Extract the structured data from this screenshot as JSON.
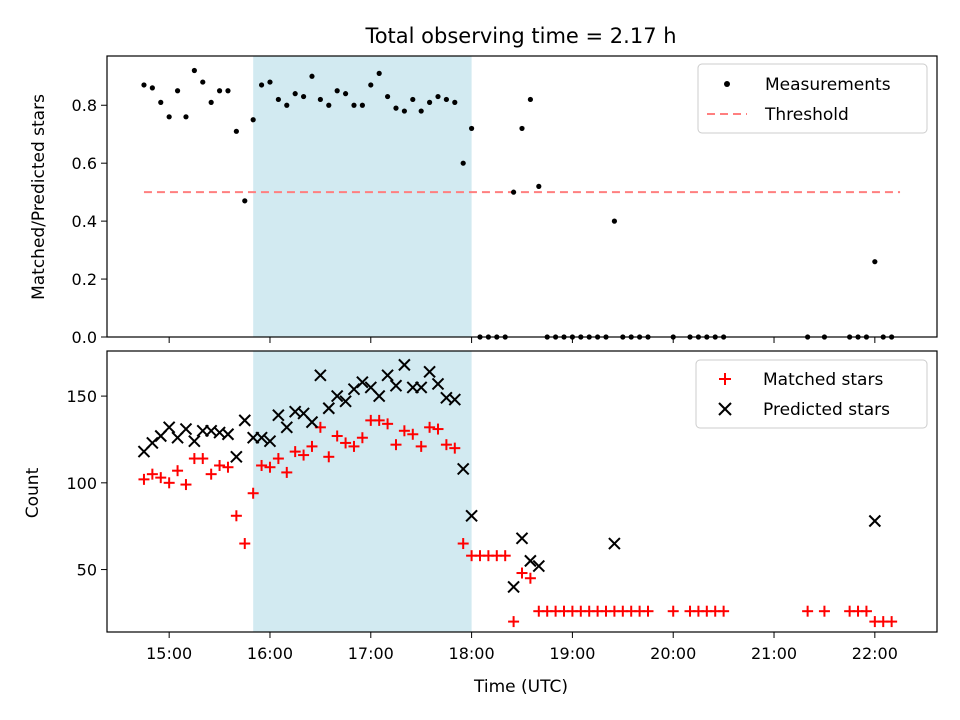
{
  "chart_data": [
    {
      "type": "scatter",
      "title": "Total observing time = 2.17 h",
      "xlabel": "",
      "ylabel": "Matched/Predicted stars",
      "ylim": [
        0,
        0.97
      ],
      "yticks": [
        0.0,
        0.2,
        0.4,
        0.6,
        0.8
      ],
      "ytick_labels": [
        "0.0",
        "0.2",
        "0.4",
        "0.6",
        "0.8"
      ],
      "legend_position": "top-right",
      "shaded_interval": [
        "15:50",
        "18:00"
      ],
      "colors": {
        "measurements": "#000000",
        "threshold": "#ff7f7f",
        "shade": "#add8e6"
      },
      "series": [
        {
          "name": "Measurements",
          "style": "dot",
          "points": [
            [
              "14:45",
              0.87
            ],
            [
              "14:50",
              0.86
            ],
            [
              "14:55",
              0.81
            ],
            [
              "15:00",
              0.76
            ],
            [
              "15:05",
              0.85
            ],
            [
              "15:10",
              0.76
            ],
            [
              "15:15",
              0.92
            ],
            [
              "15:20",
              0.88
            ],
            [
              "15:25",
              0.81
            ],
            [
              "15:30",
              0.85
            ],
            [
              "15:35",
              0.85
            ],
            [
              "15:40",
              0.71
            ],
            [
              "15:45",
              0.47
            ],
            [
              "15:50",
              0.75
            ],
            [
              "15:55",
              0.87
            ],
            [
              "16:00",
              0.88
            ],
            [
              "16:05",
              0.82
            ],
            [
              "16:10",
              0.8
            ],
            [
              "16:15",
              0.84
            ],
            [
              "16:20",
              0.83
            ],
            [
              "16:25",
              0.9
            ],
            [
              "16:30",
              0.82
            ],
            [
              "16:35",
              0.8
            ],
            [
              "16:40",
              0.85
            ],
            [
              "16:45",
              0.84
            ],
            [
              "16:50",
              0.8
            ],
            [
              "16:55",
              0.8
            ],
            [
              "17:00",
              0.87
            ],
            [
              "17:05",
              0.91
            ],
            [
              "17:10",
              0.83
            ],
            [
              "17:15",
              0.79
            ],
            [
              "17:20",
              0.78
            ],
            [
              "17:25",
              0.82
            ],
            [
              "17:30",
              0.78
            ],
            [
              "17:35",
              0.81
            ],
            [
              "17:40",
              0.83
            ],
            [
              "17:45",
              0.82
            ],
            [
              "17:50",
              0.81
            ],
            [
              "17:55",
              0.6
            ],
            [
              "18:00",
              0.72
            ],
            [
              "18:05",
              0.0
            ],
            [
              "18:10",
              0.0
            ],
            [
              "18:15",
              0.0
            ],
            [
              "18:20",
              0.0
            ],
            [
              "18:25",
              0.5
            ],
            [
              "18:30",
              0.72
            ],
            [
              "18:35",
              0.82
            ],
            [
              "18:40",
              0.52
            ],
            [
              "18:45",
              0.0
            ],
            [
              "18:50",
              0.0
            ],
            [
              "18:55",
              0.0
            ],
            [
              "19:00",
              0.0
            ],
            [
              "19:05",
              0.0
            ],
            [
              "19:10",
              0.0
            ],
            [
              "19:15",
              0.0
            ],
            [
              "19:20",
              0.0
            ],
            [
              "19:25",
              0.4
            ],
            [
              "19:30",
              0.0
            ],
            [
              "19:35",
              0.0
            ],
            [
              "19:40",
              0.0
            ],
            [
              "19:45",
              0.0
            ],
            [
              "20:00",
              0.0
            ],
            [
              "20:10",
              0.0
            ],
            [
              "20:15",
              0.0
            ],
            [
              "20:20",
              0.0
            ],
            [
              "20:25",
              0.0
            ],
            [
              "20:30",
              0.0
            ],
            [
              "21:20",
              0.0
            ],
            [
              "21:30",
              0.0
            ],
            [
              "21:45",
              0.0
            ],
            [
              "21:50",
              0.0
            ],
            [
              "21:55",
              0.0
            ],
            [
              "22:00",
              0.26
            ],
            [
              "22:05",
              0.0
            ],
            [
              "22:10",
              0.0
            ]
          ]
        },
        {
          "name": "Threshold",
          "style": "dashed-line",
          "points": [
            [
              "14:45",
              0.5
            ],
            [
              "22:15",
              0.5
            ]
          ]
        }
      ]
    },
    {
      "type": "scatter",
      "title": "",
      "xlabel": "Time (UTC)",
      "ylabel": "Count",
      "xlim": [
        "14:23",
        "22:37"
      ],
      "ylim": [
        14,
        176
      ],
      "xticks": [
        "15:00",
        "16:00",
        "17:00",
        "18:00",
        "19:00",
        "20:00",
        "21:00",
        "22:00"
      ],
      "yticks": [
        50,
        100,
        150
      ],
      "legend_position": "top-right",
      "shaded_interval": [
        "15:50",
        "18:00"
      ],
      "colors": {
        "matched": "#ff0000",
        "predicted": "#000000",
        "shade": "#add8e6"
      },
      "series": [
        {
          "name": "Matched stars",
          "style": "plus",
          "points": [
            [
              "14:45",
              102
            ],
            [
              "14:50",
              105
            ],
            [
              "14:55",
              103
            ],
            [
              "15:00",
              100
            ],
            [
              "15:05",
              107
            ],
            [
              "15:10",
              99
            ],
            [
              "15:15",
              114
            ],
            [
              "15:20",
              114
            ],
            [
              "15:25",
              105
            ],
            [
              "15:30",
              110
            ],
            [
              "15:35",
              109
            ],
            [
              "15:40",
              81
            ],
            [
              "15:45",
              65
            ],
            [
              "15:50",
              94
            ],
            [
              "15:55",
              110
            ],
            [
              "16:00",
              109
            ],
            [
              "16:05",
              114
            ],
            [
              "16:10",
              106
            ],
            [
              "16:15",
              118
            ],
            [
              "16:20",
              116
            ],
            [
              "16:25",
              121
            ],
            [
              "16:30",
              132
            ],
            [
              "16:35",
              115
            ],
            [
              "16:40",
              127
            ],
            [
              "16:45",
              123
            ],
            [
              "16:50",
              121
            ],
            [
              "16:55",
              126
            ],
            [
              "17:00",
              136
            ],
            [
              "17:05",
              136
            ],
            [
              "17:10",
              134
            ],
            [
              "17:15",
              122
            ],
            [
              "17:20",
              130
            ],
            [
              "17:25",
              128
            ],
            [
              "17:30",
              121
            ],
            [
              "17:35",
              132
            ],
            [
              "17:40",
              131
            ],
            [
              "17:45",
              122
            ],
            [
              "17:50",
              120
            ],
            [
              "17:55",
              65
            ],
            [
              "18:00",
              58
            ],
            [
              "18:05",
              58
            ],
            [
              "18:10",
              58
            ],
            [
              "18:15",
              58
            ],
            [
              "18:20",
              58
            ],
            [
              "18:25",
              20
            ],
            [
              "18:30",
              48
            ],
            [
              "18:35",
              45
            ],
            [
              "18:40",
              26
            ],
            [
              "18:45",
              26
            ],
            [
              "18:50",
              26
            ],
            [
              "18:55",
              26
            ],
            [
              "19:00",
              26
            ],
            [
              "19:05",
              26
            ],
            [
              "19:10",
              26
            ],
            [
              "19:15",
              26
            ],
            [
              "19:20",
              26
            ],
            [
              "19:25",
              26
            ],
            [
              "19:30",
              26
            ],
            [
              "19:35",
              26
            ],
            [
              "19:40",
              26
            ],
            [
              "19:45",
              26
            ],
            [
              "20:00",
              26
            ],
            [
              "20:10",
              26
            ],
            [
              "20:15",
              26
            ],
            [
              "20:20",
              26
            ],
            [
              "20:25",
              26
            ],
            [
              "20:30",
              26
            ],
            [
              "21:20",
              26
            ],
            [
              "21:30",
              26
            ],
            [
              "21:45",
              26
            ],
            [
              "21:50",
              26
            ],
            [
              "21:55",
              26
            ],
            [
              "22:00",
              20
            ],
            [
              "22:05",
              20
            ],
            [
              "22:10",
              20
            ]
          ]
        },
        {
          "name": "Predicted stars",
          "style": "x",
          "points": [
            [
              "14:45",
              118
            ],
            [
              "14:50",
              123
            ],
            [
              "14:55",
              127
            ],
            [
              "15:00",
              132
            ],
            [
              "15:05",
              126
            ],
            [
              "15:10",
              131
            ],
            [
              "15:15",
              124
            ],
            [
              "15:20",
              130
            ],
            [
              "15:25",
              130
            ],
            [
              "15:30",
              129
            ],
            [
              "15:35",
              128
            ],
            [
              "15:40",
              115
            ],
            [
              "15:45",
              136
            ],
            [
              "15:50",
              126
            ],
            [
              "15:55",
              126
            ],
            [
              "16:00",
              124
            ],
            [
              "16:05",
              139
            ],
            [
              "16:10",
              132
            ],
            [
              "16:15",
              141
            ],
            [
              "16:20",
              140
            ],
            [
              "16:25",
              135
            ],
            [
              "16:30",
              162
            ],
            [
              "16:35",
              143
            ],
            [
              "16:40",
              150
            ],
            [
              "16:45",
              147
            ],
            [
              "16:50",
              154
            ],
            [
              "16:55",
              158
            ],
            [
              "17:00",
              155
            ],
            [
              "17:05",
              150
            ],
            [
              "17:10",
              162
            ],
            [
              "17:15",
              156
            ],
            [
              "17:20",
              168
            ],
            [
              "17:25",
              155
            ],
            [
              "17:30",
              155
            ],
            [
              "17:35",
              164
            ],
            [
              "17:40",
              157
            ],
            [
              "17:45",
              149
            ],
            [
              "17:50",
              148
            ],
            [
              "17:55",
              108
            ],
            [
              "18:00",
              81
            ],
            [
              "18:25",
              40
            ],
            [
              "18:30",
              68
            ],
            [
              "18:35",
              55
            ],
            [
              "18:40",
              52
            ],
            [
              "19:25",
              65
            ],
            [
              "22:00",
              78
            ]
          ]
        }
      ]
    }
  ]
}
